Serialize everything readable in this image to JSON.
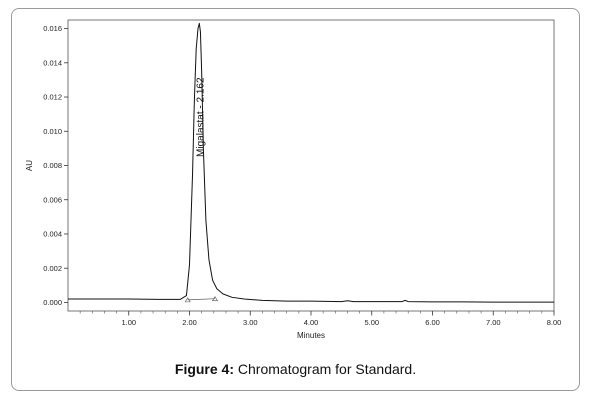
{
  "caption": {
    "label": "Figure 4:",
    "text": " Chromatogram for Standard."
  },
  "chart_data": {
    "type": "line",
    "title": "",
    "xlabel": "Minutes",
    "ylabel": "AU",
    "xlim": [
      0,
      8.0
    ],
    "ylim": [
      -0.0005,
      0.0165
    ],
    "x_ticks": [
      1.0,
      2.0,
      3.0,
      4.0,
      5.0,
      6.0,
      7.0,
      8.0
    ],
    "x_tick_labels": [
      "1.00",
      "2.00",
      "3.00",
      "4.00",
      "5.00",
      "6.00",
      "7.00",
      "8.00"
    ],
    "y_ticks": [
      0.0,
      0.002,
      0.004,
      0.006,
      0.008,
      0.01,
      0.012,
      0.014,
      0.016
    ],
    "y_tick_labels": [
      "0.000",
      "0.002",
      "0.004",
      "0.006",
      "0.008",
      "0.010",
      "0.012",
      "0.014",
      "0.016"
    ],
    "grid": false,
    "series": [
      {
        "x": [
          0,
          0.5,
          1.0,
          1.5,
          1.85,
          1.95,
          2.0,
          2.05,
          2.08,
          2.11,
          2.14,
          2.162,
          2.18,
          2.2,
          2.23,
          2.27,
          2.32,
          2.38,
          2.45,
          2.55,
          2.7,
          2.9,
          3.2,
          3.6,
          4.0,
          4.5,
          4.6,
          4.7,
          5.0,
          5.5,
          5.55,
          5.6,
          6.0,
          6.5,
          7.0,
          7.5,
          8.0
        ],
        "y": [
          0.0002,
          0.0002,
          0.0002,
          0.00018,
          0.00018,
          0.0004,
          0.0022,
          0.0075,
          0.0118,
          0.0148,
          0.016,
          0.0163,
          0.0158,
          0.0135,
          0.0088,
          0.0048,
          0.0025,
          0.0013,
          0.0008,
          0.0005,
          0.0003,
          0.0002,
          0.00012,
          8e-05,
          8e-05,
          5e-05,
          0.0001,
          5e-05,
          5e-05,
          5e-05,
          0.00012,
          5e-05,
          3e-05,
          3e-05,
          2e-05,
          2e-05,
          2e-05
        ]
      }
    ],
    "baseline": {
      "x": [
        1.97,
        2.42
      ],
      "y": [
        0.00015,
        0.00022
      ]
    },
    "annotations": [
      {
        "text": "Migalastat - 2.162",
        "x": 2.162
      }
    ]
  }
}
